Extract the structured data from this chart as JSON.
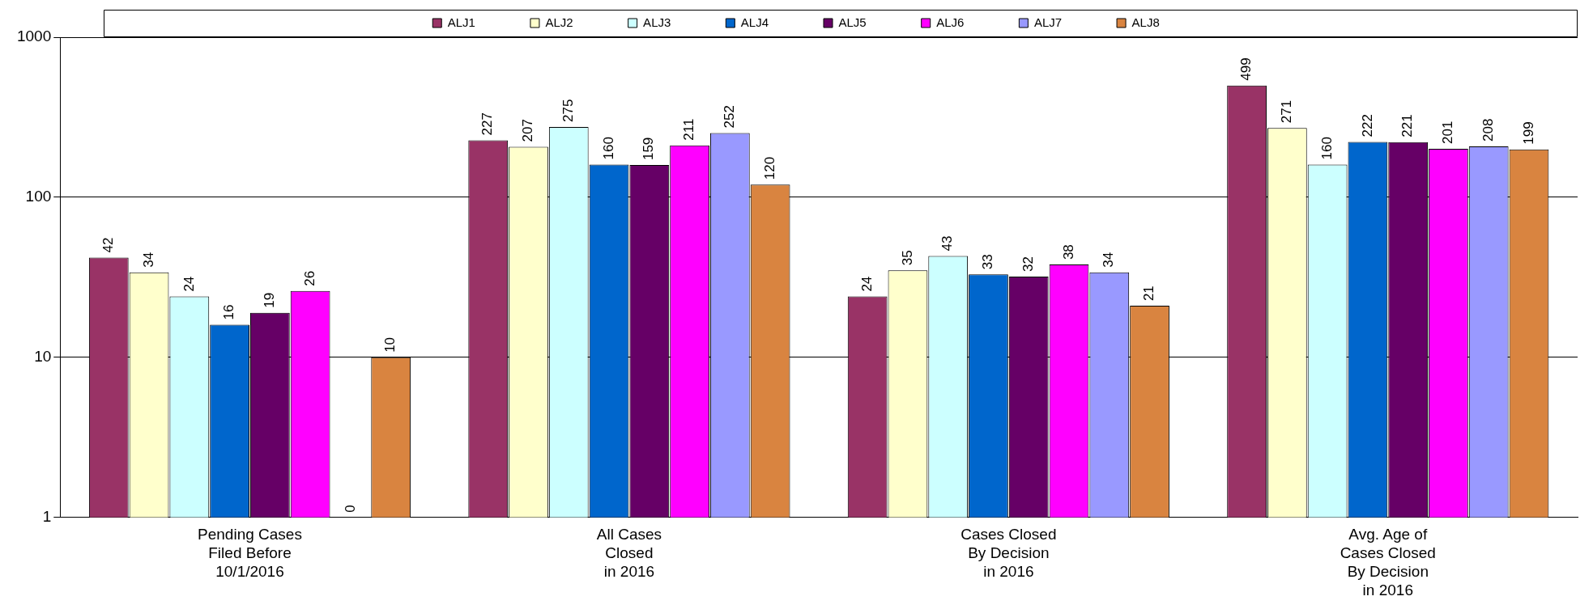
{
  "chart_data": {
    "type": "bar",
    "categories": [
      "Pending Cases\nFiled Before\n10/1/2016",
      "All Cases\nClosed\nin 2016",
      "Cases Closed\nBy Decision\nin 2016",
      "Avg. Age of\nCases Closed\nBy Decision\nin 2016"
    ],
    "series": [
      {
        "name": "ALJ1",
        "color": "#993366",
        "values": [
          42,
          227,
          24,
          499
        ]
      },
      {
        "name": "ALJ2",
        "color": "#ffffcc",
        "values": [
          34,
          207,
          35,
          271
        ]
      },
      {
        "name": "ALJ3",
        "color": "#ccffff",
        "values": [
          24,
          275,
          43,
          160
        ]
      },
      {
        "name": "ALJ4",
        "color": "#0066cc",
        "values": [
          16,
          160,
          33,
          222
        ]
      },
      {
        "name": "ALJ5",
        "color": "#660066",
        "values": [
          19,
          159,
          32,
          221
        ]
      },
      {
        "name": "ALJ6",
        "color": "#ff00ff",
        "values": [
          26,
          211,
          38,
          201
        ]
      },
      {
        "name": "ALJ7",
        "color": "#9999ff",
        "values": [
          null,
          252,
          34,
          208
        ],
        "value_labels": [
          "0",
          "252",
          "34",
          "208"
        ]
      },
      {
        "name": "ALJ8",
        "color": "#d98440",
        "values": [
          10,
          120,
          21,
          199
        ]
      }
    ],
    "log": true,
    "ylim": [
      1,
      1000
    ],
    "yticks": [
      1,
      10,
      100,
      1000
    ],
    "grid": "y",
    "legend": "top",
    "data_labels": true
  }
}
